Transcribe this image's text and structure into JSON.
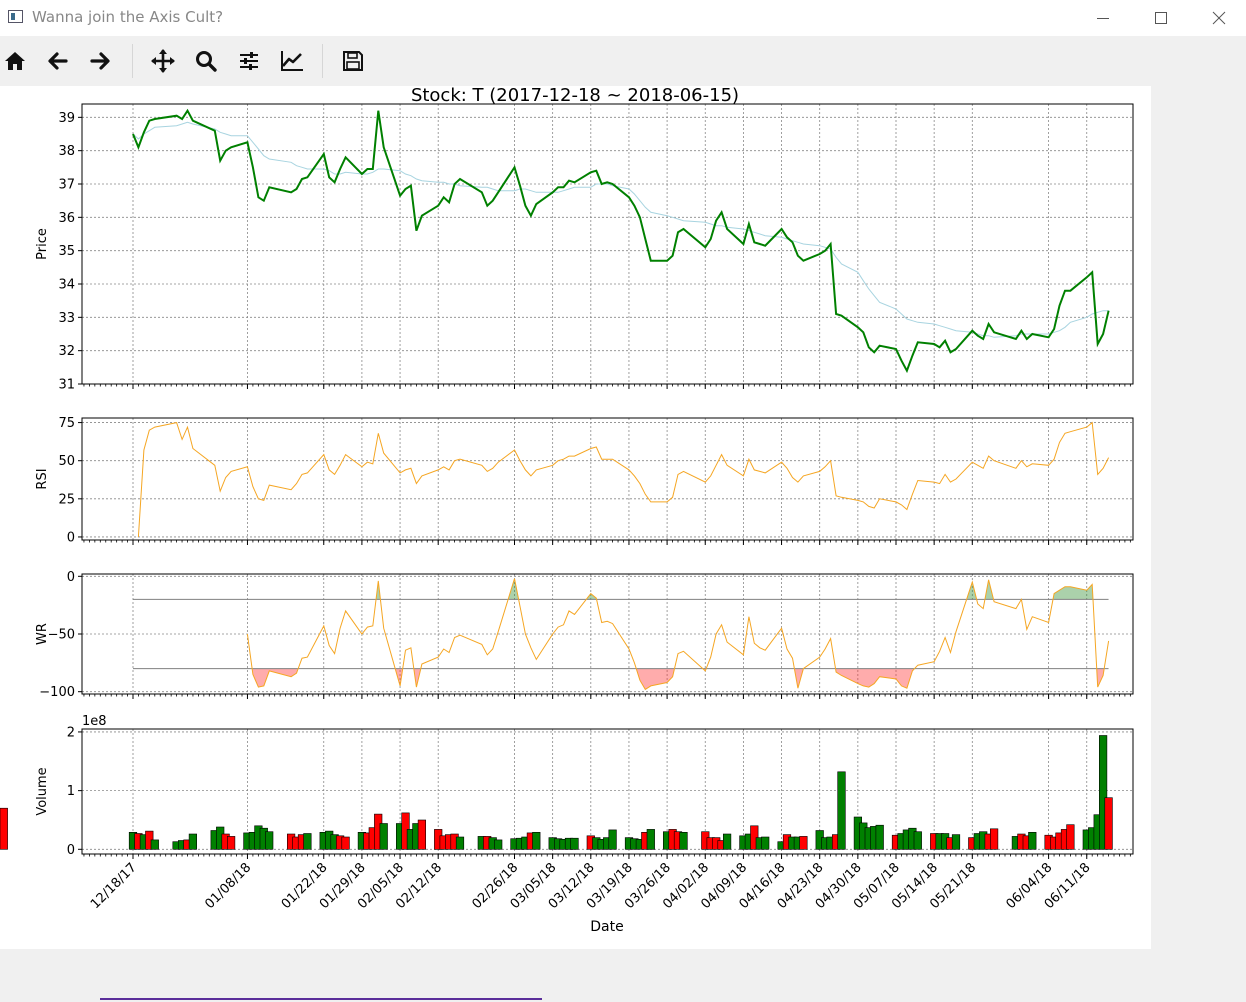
{
  "window": {
    "title": "Wanna join the Axis Cult?"
  },
  "toolbar": {
    "buttons": [
      {
        "name": "home-icon"
      },
      {
        "name": "back-arrow-icon"
      },
      {
        "name": "forward-arrow-icon"
      },
      {
        "name": "pan-move-icon"
      },
      {
        "name": "zoom-magnifier-icon"
      },
      {
        "name": "configure-subplots-icon"
      },
      {
        "name": "edit-axis-icon"
      },
      {
        "name": "save-floppy-icon"
      }
    ]
  },
  "chart_data": {
    "type": "line",
    "title": "Stock: T (2017-12-18 ~ 2018-06-15)",
    "xlabel": "Date",
    "date_ticks": [
      "12/18/17",
      "01/08/18",
      "01/22/18",
      "01/29/18",
      "02/05/18",
      "02/12/18",
      "02/26/18",
      "03/05/18",
      "03/12/18",
      "03/19/18",
      "03/26/18",
      "04/02/18",
      "04/09/18",
      "04/16/18",
      "04/23/18",
      "04/30/18",
      "05/07/18",
      "05/14/18",
      "05/21/18",
      "06/04/18",
      "06/11/18"
    ],
    "dates": [
      "2017-12-18",
      "2017-12-19",
      "2017-12-20",
      "2017-12-21",
      "2017-12-22",
      "2017-12-26",
      "2017-12-27",
      "2017-12-28",
      "2017-12-29",
      "2018-01-02",
      "2018-01-03",
      "2018-01-04",
      "2018-01-05",
      "2018-01-08",
      "2018-01-09",
      "2018-01-10",
      "2018-01-11",
      "2018-01-12",
      "2018-01-16",
      "2018-01-17",
      "2018-01-18",
      "2018-01-19",
      "2018-01-22",
      "2018-01-23",
      "2018-01-24",
      "2018-01-25",
      "2018-01-26",
      "2018-01-29",
      "2018-01-30",
      "2018-01-31",
      "2018-02-01",
      "2018-02-02",
      "2018-02-05",
      "2018-02-06",
      "2018-02-07",
      "2018-02-08",
      "2018-02-09",
      "2018-02-12",
      "2018-02-13",
      "2018-02-14",
      "2018-02-15",
      "2018-02-16",
      "2018-02-20",
      "2018-02-21",
      "2018-02-22",
      "2018-02-23",
      "2018-02-26",
      "2018-02-27",
      "2018-02-28",
      "2018-03-01",
      "2018-03-02",
      "2018-03-05",
      "2018-03-06",
      "2018-03-07",
      "2018-03-08",
      "2018-03-09",
      "2018-03-12",
      "2018-03-13",
      "2018-03-14",
      "2018-03-15",
      "2018-03-16",
      "2018-03-19",
      "2018-03-20",
      "2018-03-21",
      "2018-03-22",
      "2018-03-23",
      "2018-03-26",
      "2018-03-27",
      "2018-03-28",
      "2018-03-29",
      "2018-04-02",
      "2018-04-03",
      "2018-04-04",
      "2018-04-05",
      "2018-04-06",
      "2018-04-09",
      "2018-04-10",
      "2018-04-11",
      "2018-04-12",
      "2018-04-13",
      "2018-04-16",
      "2018-04-17",
      "2018-04-18",
      "2018-04-19",
      "2018-04-20",
      "2018-04-23",
      "2018-04-24",
      "2018-04-25",
      "2018-04-26",
      "2018-04-27",
      "2018-04-30",
      "2018-05-01",
      "2018-05-02",
      "2018-05-03",
      "2018-05-04",
      "2018-05-07",
      "2018-05-08",
      "2018-05-09",
      "2018-05-10",
      "2018-05-11",
      "2018-05-14",
      "2018-05-15",
      "2018-05-16",
      "2018-05-17",
      "2018-05-18",
      "2018-05-21",
      "2018-05-22",
      "2018-05-23",
      "2018-05-24",
      "2018-05-25",
      "2018-05-29",
      "2018-05-30",
      "2018-05-31",
      "2018-06-01",
      "2018-06-04",
      "2018-06-05",
      "2018-06-06",
      "2018-06-07",
      "2018-06-08",
      "2018-06-11",
      "2018-06-12",
      "2018-06-13",
      "2018-06-14",
      "2018-06-15"
    ],
    "price": {
      "ylabel": "Price",
      "ylim": [
        31,
        39.4
      ],
      "yticks": [
        31,
        32,
        33,
        34,
        35,
        36,
        37,
        38,
        39
      ],
      "color": "#008000",
      "close": [
        38.5,
        38.1,
        38.55,
        38.9,
        38.95,
        39.05,
        38.95,
        39.2,
        38.9,
        38.6,
        37.7,
        38.0,
        38.1,
        38.25,
        37.5,
        36.6,
        36.5,
        36.9,
        36.75,
        36.85,
        37.15,
        37.2,
        37.9,
        37.2,
        37.05,
        37.45,
        37.8,
        37.3,
        37.45,
        37.45,
        39.2,
        38.1,
        36.65,
        36.85,
        36.95,
        35.6,
        36.05,
        36.35,
        36.6,
        36.45,
        37.0,
        37.15,
        36.75,
        36.35,
        36.5,
        36.75,
        37.5,
        36.95,
        36.35,
        36.05,
        36.4,
        36.75,
        36.9,
        36.9,
        37.1,
        37.05,
        37.35,
        37.4,
        37.0,
        37.05,
        37.0,
        36.6,
        36.35,
        36.0,
        35.35,
        34.7,
        34.7,
        34.85,
        35.55,
        35.65,
        35.1,
        35.35,
        35.9,
        36.15,
        35.65,
        35.2,
        35.8,
        35.25,
        35.2,
        35.15,
        35.65,
        35.4,
        35.25,
        34.85,
        34.7,
        34.9,
        35.0,
        35.2,
        33.1,
        33.05,
        32.7,
        32.55,
        32.1,
        31.95,
        32.15,
        32.05,
        31.7,
        31.4,
        31.85,
        32.25,
        32.2,
        32.1,
        32.3,
        31.95,
        32.05,
        32.6,
        32.45,
        32.35,
        32.8,
        32.55,
        32.35,
        32.6,
        32.35,
        32.5,
        32.4,
        32.65,
        33.35,
        33.8,
        33.8,
        34.2,
        34.35,
        32.2,
        32.5,
        33.2
      ],
      "ma": [
        38.5,
        38.35,
        38.5,
        38.6,
        38.7,
        38.75,
        38.8,
        38.85,
        38.8,
        38.65,
        38.55,
        38.5,
        38.45,
        38.45,
        38.25,
        38.05,
        37.85,
        37.75,
        37.65,
        37.55,
        37.5,
        37.45,
        37.45,
        37.4,
        37.3,
        37.3,
        37.35,
        37.3,
        37.3,
        37.35,
        37.45,
        37.45,
        37.4,
        37.3,
        37.25,
        37.15,
        37.1,
        37.05,
        37.05,
        37.0,
        37.0,
        36.95,
        36.9,
        36.9,
        36.85,
        36.8,
        36.8,
        36.85,
        36.85,
        36.8,
        36.75,
        36.75,
        36.75,
        36.8,
        36.85,
        36.9,
        36.9,
        37.0,
        37.0,
        37.0,
        36.95,
        36.85,
        36.7,
        36.5,
        36.3,
        36.15,
        36.05,
        36.0,
        35.95,
        35.9,
        35.85,
        35.8,
        35.75,
        35.75,
        35.7,
        35.65,
        35.6,
        35.55,
        35.5,
        35.45,
        35.4,
        35.35,
        35.3,
        35.25,
        35.2,
        35.15,
        35.1,
        35.05,
        34.8,
        34.6,
        34.35,
        34.1,
        33.85,
        33.65,
        33.45,
        33.25,
        33.1,
        32.95,
        32.9,
        32.85,
        32.8,
        32.75,
        32.7,
        32.65,
        32.6,
        32.55,
        32.5,
        32.45,
        32.45,
        32.4,
        32.45,
        32.5,
        32.5,
        32.5,
        32.5,
        32.55,
        32.6,
        32.7,
        32.85,
        33.0,
        33.1,
        33.15,
        33.2,
        33.2
      ]
    },
    "rsi": {
      "ylabel": "RSI",
      "ylim": [
        -2,
        78
      ],
      "yticks": [
        0,
        25,
        50,
        75
      ],
      "color": "#f5a623",
      "values": [
        null,
        0,
        57,
        70,
        72,
        75,
        64,
        72,
        58,
        47,
        30,
        39,
        43,
        46,
        33,
        25,
        24,
        34,
        31,
        35,
        41,
        42,
        54,
        44,
        41,
        47,
        54,
        46,
        49,
        48,
        68,
        55,
        42,
        44,
        45,
        35,
        40,
        44,
        46,
        44,
        50,
        51,
        47,
        43,
        45,
        49,
        57,
        50,
        44,
        40,
        44,
        47,
        50,
        51,
        53,
        53,
        58,
        59,
        51,
        51,
        51,
        44,
        40,
        35,
        28,
        23,
        23,
        26,
        41,
        43,
        36,
        40,
        47,
        54,
        47,
        40,
        51,
        44,
        43,
        42,
        49,
        45,
        39,
        36,
        40,
        43,
        46,
        50,
        27,
        26,
        24,
        23,
        20,
        19,
        25,
        23,
        21,
        18,
        28,
        37,
        36,
        35,
        41,
        36,
        38,
        49,
        47,
        45,
        53,
        50,
        45,
        50,
        46,
        48,
        47,
        51,
        62,
        68,
        69,
        72,
        75,
        41,
        45,
        52
      ]
    },
    "wr": {
      "ylabel": "WR",
      "ylim": [
        -102,
        2
      ],
      "yticks": [
        0,
        -50,
        -100
      ],
      "tick_labels": [
        "0",
        "−50",
        "−100"
      ],
      "upper": -20,
      "lower": -80,
      "color": "#f5a623",
      "start_index": 13,
      "values": [
        null,
        null,
        null,
        null,
        null,
        null,
        null,
        null,
        null,
        null,
        null,
        null,
        null,
        -50,
        -85,
        -96,
        -95,
        -82,
        -87,
        -84,
        -71,
        -70,
        -43,
        -60,
        -67,
        -45,
        -30,
        -50,
        -44,
        -43,
        -4,
        -45,
        -95,
        -64,
        -62,
        -96,
        -76,
        -70,
        -63,
        -66,
        -53,
        -51,
        -59,
        -68,
        -63,
        -48,
        -2,
        -26,
        -50,
        -62,
        -72,
        -50,
        -44,
        -42,
        -30,
        -33,
        -15,
        -19,
        -40,
        -39,
        -41,
        -63,
        -75,
        -90,
        -98,
        -95,
        -92,
        -87,
        -67,
        -65,
        -82,
        -70,
        -50,
        -42,
        -57,
        -68,
        -35,
        -58,
        -62,
        -64,
        -45,
        -63,
        -71,
        -97,
        -80,
        -70,
        -63,
        -54,
        -83,
        -86,
        -93,
        -95,
        -96,
        -93,
        -87,
        -89,
        -95,
        -97,
        -82,
        -77,
        -74,
        -65,
        -53,
        -66,
        -48,
        -5,
        -24,
        -28,
        -3,
        -22,
        -28,
        -20,
        -46,
        -35,
        -40,
        -15,
        -12,
        -9,
        -9,
        -12,
        -7,
        -96,
        -86,
        -56
      ]
    },
    "volume": {
      "ylabel": "Volume",
      "offset_label": "1e8",
      "ylim": [
        -0.08,
        2.05
      ],
      "yticks": [
        0,
        1,
        2
      ],
      "up_color": "#008000",
      "down_color": "#ff0000",
      "values": [
        0.29,
        0.27,
        0.25,
        0.31,
        0.16,
        0.13,
        0.15,
        0.16,
        0.26,
        0.32,
        0.38,
        0.26,
        0.22,
        0.28,
        0.29,
        0.4,
        0.36,
        0.3,
        0.26,
        0.21,
        0.25,
        0.27,
        0.29,
        0.31,
        0.25,
        0.23,
        0.21,
        0.29,
        0.28,
        0.37,
        0.6,
        0.44,
        0.44,
        0.62,
        0.34,
        0.44,
        0.5,
        0.34,
        0.23,
        0.25,
        0.26,
        0.21,
        0.22,
        0.22,
        0.2,
        0.16,
        0.18,
        0.19,
        0.21,
        0.28,
        0.29,
        0.2,
        0.18,
        0.17,
        0.19,
        0.19,
        0.23,
        0.2,
        0.17,
        0.2,
        0.33,
        0.2,
        0.18,
        0.17,
        0.29,
        0.34,
        0.3,
        0.34,
        0.3,
        0.29,
        0.3,
        0.2,
        0.2,
        0.15,
        0.26,
        0.23,
        0.26,
        0.4,
        0.2,
        0.21,
        0.13,
        0.25,
        0.21,
        0.21,
        0.22,
        0.32,
        0.2,
        0.21,
        0.25,
        1.32,
        0.55,
        0.45,
        0.37,
        0.39,
        0.41,
        0.24,
        0.27,
        0.33,
        0.36,
        0.3,
        0.27,
        0.27,
        0.27,
        0.2,
        0.25,
        0.2,
        0.27,
        0.3,
        0.26,
        0.35,
        0.22,
        0.26,
        0.23,
        0.29,
        0.24,
        0.21,
        0.28,
        0.34,
        0.42,
        0.33,
        0.37,
        0.59,
        1.94,
        0.88,
        0.7
      ],
      "direction": [
        1,
        0,
        1,
        0,
        1,
        1,
        1,
        0,
        1,
        1,
        1,
        0,
        0,
        1,
        1,
        1,
        1,
        1,
        0,
        0,
        0,
        1,
        1,
        1,
        1,
        0,
        0,
        1,
        0,
        0,
        0,
        1,
        1,
        0,
        1,
        1,
        0,
        0,
        0,
        0,
        0,
        1,
        1,
        0,
        1,
        1,
        1,
        1,
        1,
        0,
        1,
        1,
        1,
        1,
        1,
        1,
        0,
        1,
        1,
        1,
        1,
        1,
        1,
        1,
        0,
        1,
        1,
        0,
        0,
        1,
        0,
        0,
        0,
        0,
        1,
        1,
        1,
        0,
        1,
        1,
        1,
        0,
        1,
        1,
        0,
        1,
        1,
        1,
        0,
        1,
        1,
        1,
        1,
        1,
        1,
        0,
        1,
        1,
        1,
        1,
        0,
        1,
        1,
        0,
        1,
        0,
        1,
        1,
        0,
        0,
        1,
        0,
        0,
        1,
        0,
        0,
        0,
        0,
        0,
        1,
        1,
        1,
        1,
        0
      ]
    }
  }
}
